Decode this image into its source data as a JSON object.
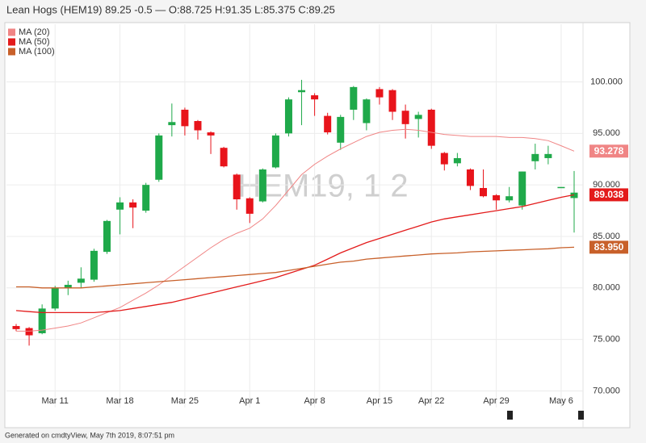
{
  "chart_data": {
    "type": "candlestick",
    "title": "Lean Hogs (HEM19) 89.25 -0.5 — O:88.725 H:91.35 L:85.375 C:89.25",
    "watermark": "HEM19, 1 2",
    "footer": "Generated on cmdtyView, May 7th 2019, 8:07:51 pm",
    "categories": [
      null,
      null,
      null,
      "Mar 11",
      null,
      null,
      null,
      null,
      "Mar 18",
      null,
      null,
      null,
      null,
      "Mar 25",
      null,
      null,
      null,
      null,
      "Apr 1",
      null,
      null,
      null,
      null,
      "Apr 8",
      null,
      null,
      null,
      null,
      "Apr 15",
      null,
      null,
      null,
      "Apr 22",
      null,
      null,
      null,
      null,
      "Apr 29",
      null,
      null,
      null,
      null,
      "May 6",
      null
    ],
    "open": [
      76.3,
      76.1,
      75.6,
      78.0,
      80.0,
      80.5,
      80.8,
      83.5,
      87.6,
      88.3,
      87.5,
      90.5,
      95.8,
      97.3,
      96.2,
      95.1,
      93.6,
      91.0,
      88.7,
      88.4,
      91.7,
      95.0,
      99.0,
      98.7,
      96.7,
      94.1,
      97.3,
      96.0,
      99.3,
      99.2,
      97.2,
      96.4,
      97.3,
      93.1,
      92.1,
      91.5,
      89.7,
      89.0,
      88.5,
      88.0,
      92.3,
      92.6,
      89.8,
      88.725
    ],
    "high": [
      76.5,
      76.2,
      78.4,
      80.2,
      80.7,
      82.0,
      83.8,
      86.6,
      88.8,
      88.6,
      90.2,
      95.0,
      97.9,
      97.5,
      96.3,
      95.2,
      93.7,
      91.1,
      88.8,
      91.6,
      95.0,
      98.5,
      100.2,
      98.9,
      97.0,
      96.8,
      99.6,
      98.4,
      99.5,
      99.3,
      97.8,
      97.1,
      97.4,
      93.2,
      93.1,
      91.6,
      91.5,
      89.1,
      89.8,
      91.3,
      94.0,
      93.8,
      89.8,
      91.35
    ],
    "low": [
      75.8,
      74.4,
      75.5,
      77.8,
      79.3,
      80.0,
      80.6,
      83.3,
      85.2,
      85.8,
      87.3,
      90.3,
      94.7,
      94.8,
      94.4,
      93.0,
      91.7,
      87.6,
      86.3,
      88.3,
      91.6,
      94.7,
      95.8,
      96.7,
      94.9,
      93.4,
      96.3,
      95.3,
      97.8,
      96.3,
      94.5,
      94.6,
      93.5,
      91.4,
      91.8,
      89.5,
      88.8,
      87.6,
      88.3,
      87.6,
      91.5,
      92.0,
      89.8,
      85.375
    ],
    "close": [
      76.0,
      75.4,
      78.0,
      80.0,
      80.3,
      80.9,
      83.6,
      86.5,
      88.3,
      87.8,
      90.0,
      94.8,
      96.1,
      95.7,
      95.3,
      94.8,
      91.8,
      88.6,
      87.2,
      91.5,
      94.8,
      98.3,
      99.2,
      98.3,
      95.1,
      96.6,
      99.5,
      98.3,
      98.5,
      97.1,
      95.9,
      96.8,
      93.8,
      92.0,
      92.6,
      89.9,
      88.9,
      88.5,
      88.9,
      91.3,
      93.0,
      93.0,
      89.8,
      89.25
    ],
    "up_color": "#1fa94a",
    "down_color": "#e8141b",
    "series": [
      {
        "name": "MA (20)",
        "color": "#f08585",
        "values": [
          75.8,
          75.8,
          75.9,
          76.1,
          76.3,
          76.6,
          77.1,
          77.6,
          78.1,
          78.8,
          79.5,
          80.3,
          81.2,
          82.1,
          83.0,
          83.9,
          84.7,
          85.3,
          85.8,
          86.7,
          88.0,
          89.5,
          91.0,
          92.0,
          92.8,
          93.5,
          94.1,
          94.7,
          95.1,
          95.3,
          95.4,
          95.3,
          95.1,
          94.9,
          94.8,
          94.7,
          94.7,
          94.7,
          94.6,
          94.6,
          94.5,
          94.3,
          93.8,
          93.278
        ],
        "value_labels": [
          null,
          null,
          null,
          null,
          null,
          null,
          null,
          null,
          null,
          null,
          null,
          null,
          null,
          null,
          null,
          null,
          null,
          null,
          null,
          null,
          null,
          null,
          null,
          null,
          null,
          null,
          null,
          null,
          null,
          null,
          null,
          null,
          null,
          null,
          null,
          null,
          null,
          null,
          null,
          null,
          null,
          null,
          null,
          "93.278"
        ]
      },
      {
        "name": "MA (50)",
        "color": "#e31b1b",
        "values": [
          77.8,
          77.7,
          77.6,
          77.6,
          77.6,
          77.6,
          77.6,
          77.7,
          77.8,
          78.0,
          78.2,
          78.4,
          78.6,
          78.9,
          79.2,
          79.5,
          79.8,
          80.1,
          80.4,
          80.7,
          81.0,
          81.4,
          81.8,
          82.2,
          82.8,
          83.4,
          83.9,
          84.4,
          84.8,
          85.2,
          85.6,
          86.0,
          86.4,
          86.7,
          86.9,
          87.1,
          87.3,
          87.5,
          87.7,
          87.9,
          88.2,
          88.5,
          88.8,
          89.038
        ],
        "value_labels": [
          null,
          null,
          null,
          null,
          null,
          null,
          null,
          null,
          null,
          null,
          null,
          null,
          null,
          null,
          null,
          null,
          null,
          null,
          null,
          null,
          null,
          null,
          null,
          null,
          null,
          null,
          null,
          null,
          null,
          null,
          null,
          null,
          null,
          null,
          null,
          null,
          null,
          null,
          null,
          null,
          null,
          null,
          null,
          "89.038"
        ]
      },
      {
        "name": "MA (100)",
        "color": "#c8602a",
        "values": [
          80.1,
          80.1,
          80.0,
          80.0,
          80.0,
          80.0,
          80.1,
          80.2,
          80.3,
          80.4,
          80.5,
          80.6,
          80.7,
          80.8,
          80.9,
          81.0,
          81.1,
          81.2,
          81.3,
          81.4,
          81.5,
          81.7,
          81.9,
          82.1,
          82.3,
          82.5,
          82.6,
          82.8,
          82.9,
          83.0,
          83.1,
          83.2,
          83.3,
          83.35,
          83.4,
          83.5,
          83.55,
          83.6,
          83.65,
          83.7,
          83.75,
          83.8,
          83.9,
          83.95
        ],
        "value_labels": [
          null,
          null,
          null,
          null,
          null,
          null,
          null,
          null,
          null,
          null,
          null,
          null,
          null,
          null,
          null,
          null,
          null,
          null,
          null,
          null,
          null,
          null,
          null,
          null,
          null,
          null,
          null,
          null,
          null,
          null,
          null,
          null,
          null,
          null,
          null,
          null,
          null,
          null,
          null,
          null,
          null,
          null,
          null,
          "83.950"
        ]
      }
    ],
    "ylim": [
      68,
      105.6
    ],
    "yticks": [
      {
        "value": 70,
        "label": "70.000"
      },
      {
        "value": 75,
        "label": "75.000"
      },
      {
        "value": 80,
        "label": "80.000"
      },
      {
        "value": 85,
        "label": "85.000"
      },
      {
        "value": 90,
        "label": "90.000"
      },
      {
        "value": 95,
        "label": "95.000"
      },
      {
        "value": 100,
        "label": "100.000"
      }
    ],
    "grid": true
  }
}
